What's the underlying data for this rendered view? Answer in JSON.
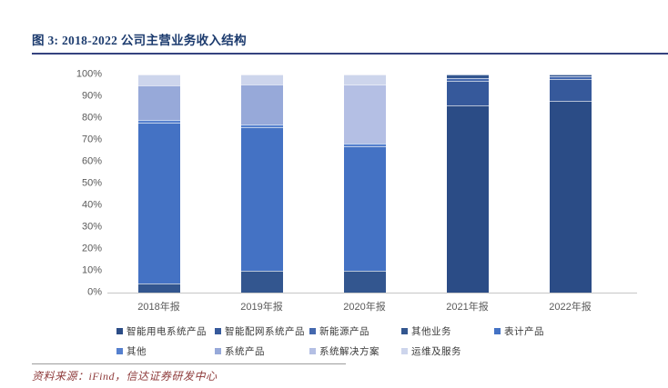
{
  "header": {
    "title": "图 3: 2018-2022 公司主营业务收入结构"
  },
  "footer": {
    "source": "资料来源：iFind，信达证券研发中心"
  },
  "colors": {
    "title_navy": "#1c3b6e",
    "title_rule": "#35427f",
    "axis_text_gray": "#595959",
    "source_red": "#8f3b3b"
  },
  "chart_data": {
    "type": "bar",
    "stacked": true,
    "title": "2018-2022 公司主营业务收入结构",
    "categories": [
      "2018年报",
      "2019年报",
      "2020年报",
      "2021年报",
      "2022年报"
    ],
    "series": [
      {
        "name": "智能用电系统产品",
        "color": "#2b4c86",
        "values": [
          0,
          0,
          0,
          86,
          88
        ]
      },
      {
        "name": "智能配网系统产品",
        "color": "#36599b",
        "values": [
          0,
          0,
          0,
          11,
          10
        ]
      },
      {
        "name": "新能源产品",
        "color": "#4468ae",
        "values": [
          0,
          0,
          0,
          1.5,
          1
        ]
      },
      {
        "name": "其他业务",
        "color": "#33568f",
        "values": [
          4,
          10,
          10,
          1.5,
          1
        ]
      },
      {
        "name": "表计产品",
        "color": "#4472c4",
        "values": [
          74,
          66,
          57,
          0,
          0
        ]
      },
      {
        "name": "其他",
        "color": "#5580ce",
        "values": [
          1,
          1,
          1.5,
          0,
          0
        ]
      },
      {
        "name": "系统产品",
        "color": "#97a9d9",
        "values": [
          16,
          18.5,
          0,
          0,
          0
        ]
      },
      {
        "name": "系统解决方案",
        "color": "#b4bfe4",
        "values": [
          0,
          0,
          27,
          0,
          0
        ]
      },
      {
        "name": "运维及服务",
        "color": "#cdd5ec",
        "values": [
          5,
          4.5,
          4.5,
          0,
          0
        ]
      }
    ],
    "xlabel": "",
    "ylabel": "",
    "ylim": [
      0,
      100
    ],
    "yticks": [
      "0%",
      "10%",
      "20%",
      "30%",
      "40%",
      "50%",
      "60%",
      "70%",
      "80%",
      "90%",
      "100%"
    ],
    "grid": false,
    "legend_position": "bottom"
  }
}
